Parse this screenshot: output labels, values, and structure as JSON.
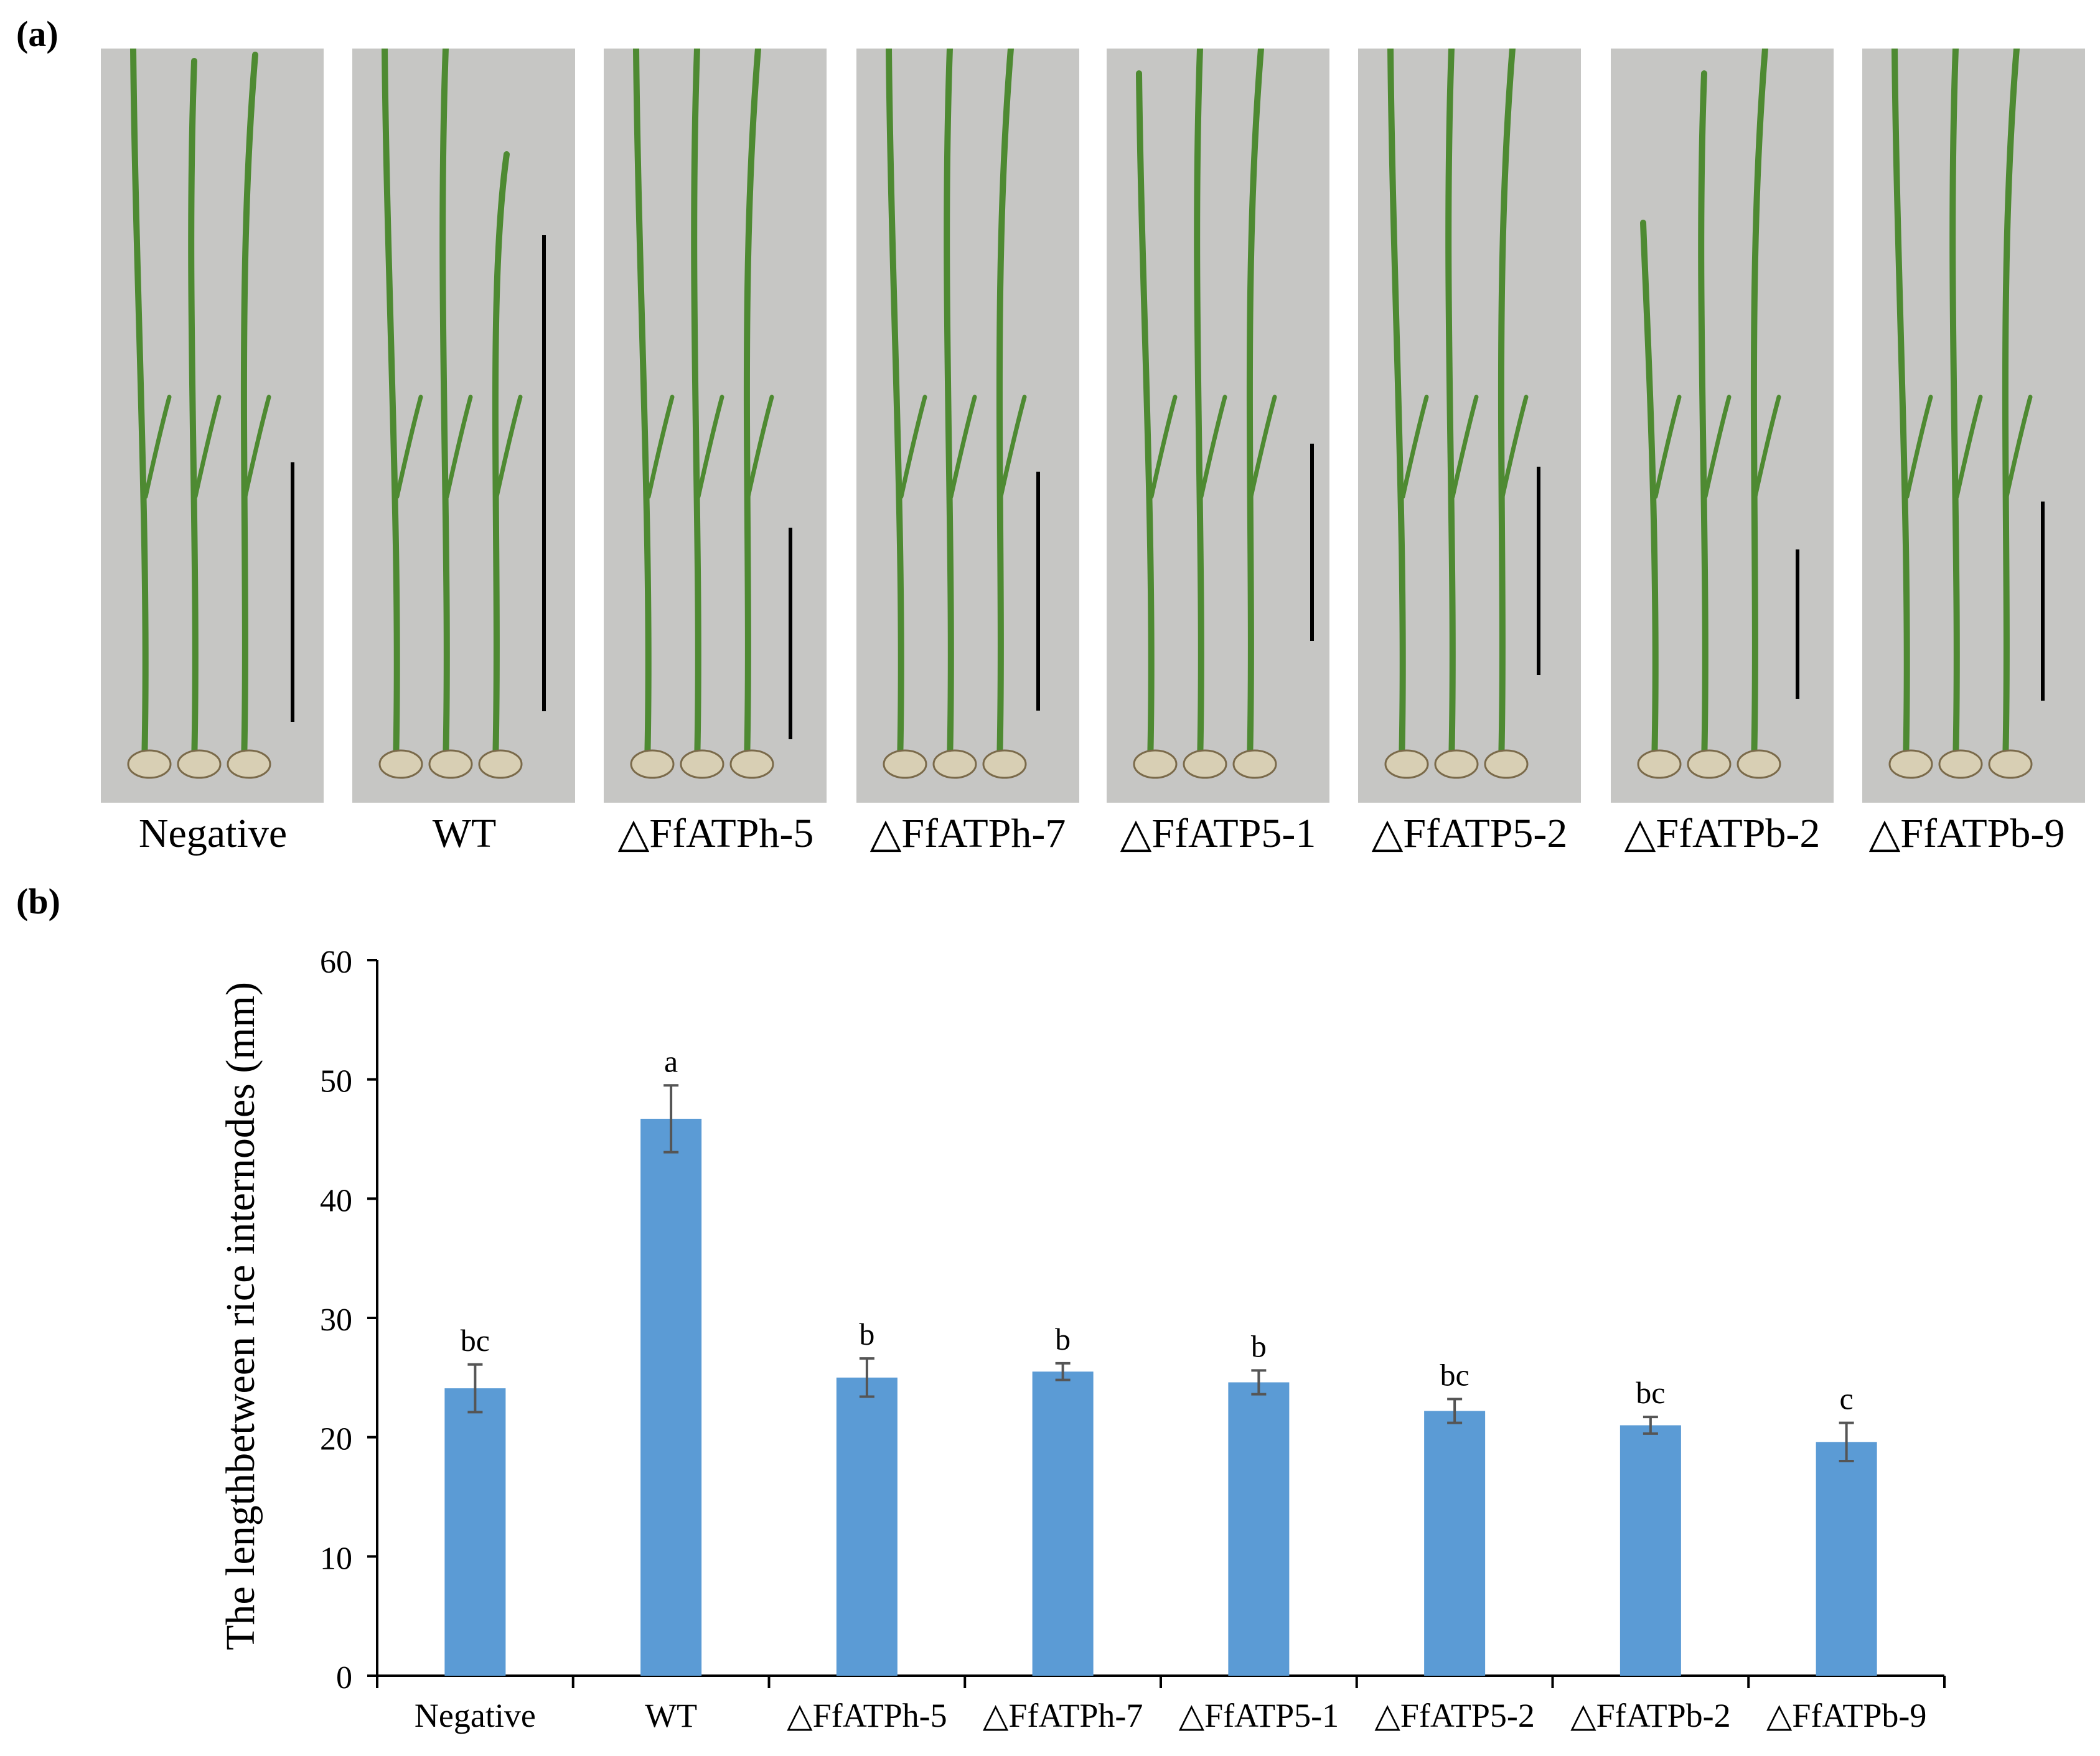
{
  "panel_a": {
    "label": "(a)",
    "photos": [
      {
        "caption": "Negative"
      },
      {
        "caption": "WT"
      },
      {
        "caption": "△FfATPh-5"
      },
      {
        "caption": "△FfATPh-7"
      },
      {
        "caption": "△FfATP5-1"
      },
      {
        "caption": "△FfATP5-2"
      },
      {
        "caption": "△FfATPb-2"
      },
      {
        "caption": "△FfATPb-9"
      }
    ]
  },
  "panel_b": {
    "label": "(b)"
  },
  "colors": {
    "bar": "#5b9bd5",
    "error_bar": "#555555",
    "axis": "#000000",
    "photo_background": "#c6c6c4",
    "leaf": "#4e8a32",
    "seed": "#d8cfb4"
  },
  "chart_data": {
    "type": "bar",
    "title": "",
    "xlabel": "",
    "ylabel": "The lengthbetween rice internodes (mm)",
    "ylim": [
      0,
      60
    ],
    "yticks": [
      0,
      10,
      20,
      30,
      40,
      50,
      60
    ],
    "grid": false,
    "categories": [
      "Negative",
      "WT",
      "△FfATPh-5",
      "△FfATPh-7",
      "△FfATP5-1",
      "△FfATP5-2",
      "△FfATPb-2",
      "△FfATPb-9"
    ],
    "values": [
      24.1,
      46.7,
      25.0,
      25.5,
      24.6,
      22.2,
      21.0,
      19.6
    ],
    "errors": [
      2.0,
      2.8,
      1.6,
      0.7,
      1.0,
      1.0,
      0.7,
      1.6
    ],
    "significance_letters": [
      "bc",
      "a",
      "b",
      "b",
      "b",
      "bc",
      "bc",
      "c"
    ]
  }
}
